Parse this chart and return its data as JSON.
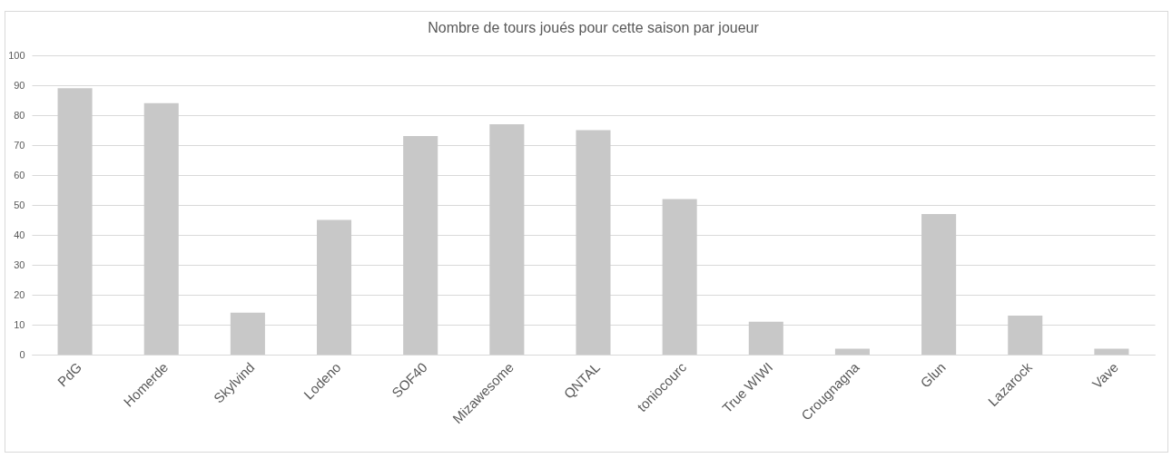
{
  "chart_data": {
    "type": "bar",
    "title": "Nombre de tours joués pour cette saison par joueur",
    "categories": [
      "PdG",
      "Homerde",
      "Skylvind",
      "Lodeno",
      "SOF40",
      "Mizawesome",
      "QNTAL",
      "toniocourc",
      "True WIWI",
      "Crougnagna",
      "Glun",
      "Lazarock",
      "Vave"
    ],
    "values": [
      89,
      84,
      14,
      45,
      73,
      77,
      75,
      52,
      11,
      2,
      47,
      13,
      2
    ],
    "color": "#c8c8c8",
    "ylim": [
      0,
      100
    ],
    "yticks": [
      0,
      10,
      20,
      30,
      40,
      50,
      60,
      70,
      80,
      90,
      100
    ],
    "grid": "y"
  }
}
